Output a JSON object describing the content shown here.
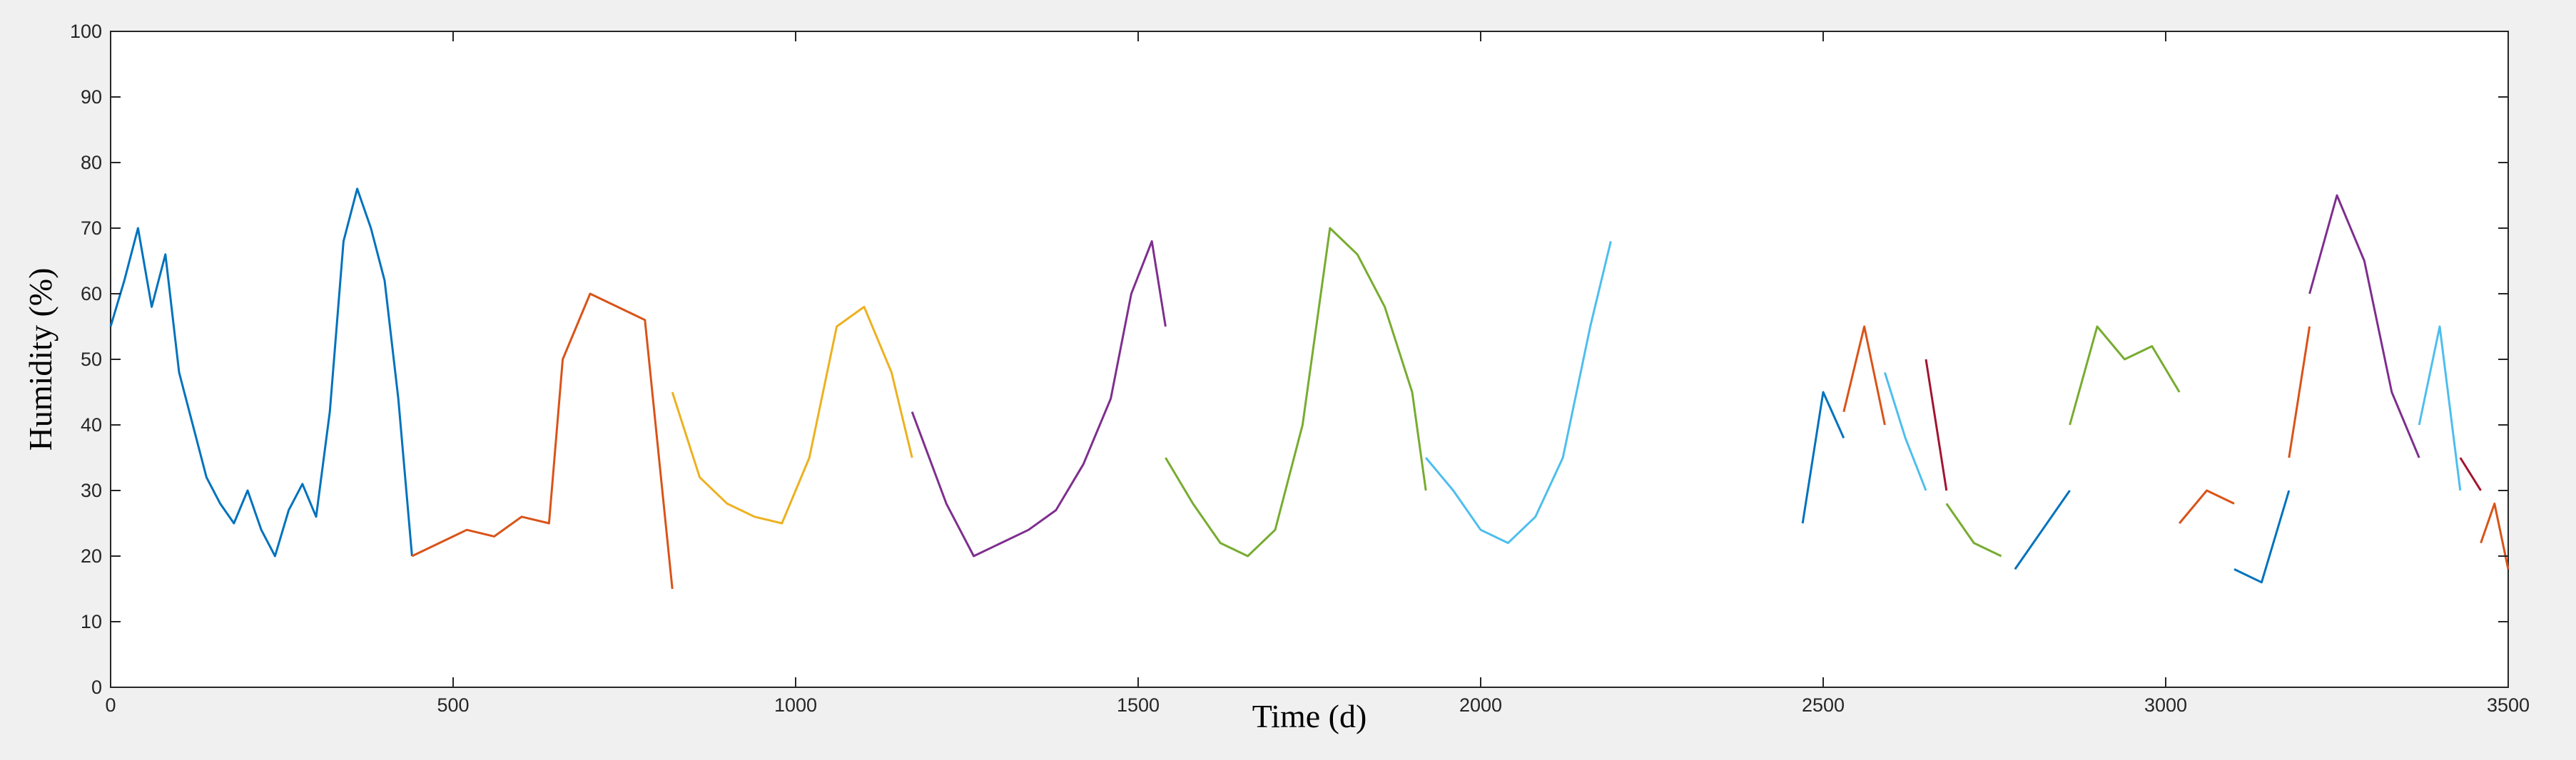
{
  "chart_data": {
    "type": "line",
    "title": "",
    "xlabel": "Time (d)",
    "ylabel": "Humidity (%)",
    "xlim": [
      0,
      3500
    ],
    "ylim": [
      0,
      100
    ],
    "xticks": [
      0,
      500,
      1000,
      1500,
      2000,
      2500,
      3000,
      3500
    ],
    "yticks": [
      0,
      10,
      20,
      30,
      40,
      50,
      60,
      70,
      80,
      90,
      100
    ],
    "grid": false,
    "legend": "none",
    "colors": [
      "#0072BD",
      "#D95319",
      "#EDB120",
      "#7E2F8E",
      "#77AC30",
      "#4DBEEE",
      "#A2142F"
    ],
    "series": [
      {
        "color": "#0072BD",
        "x": [
          0,
          20,
          40,
          60,
          80,
          100,
          120,
          140,
          160,
          180,
          200,
          220,
          240,
          260,
          280,
          300,
          320,
          340,
          360,
          380,
          400,
          420,
          440
        ],
        "y": [
          55,
          62,
          70,
          58,
          66,
          48,
          40,
          32,
          28,
          25,
          30,
          24,
          20,
          27,
          31,
          26,
          42,
          68,
          76,
          70,
          62,
          44,
          20
        ]
      },
      {
        "color": "#D95319",
        "x": [
          440,
          480,
          520,
          560,
          600,
          640,
          660,
          700,
          740,
          780,
          820
        ],
        "y": [
          20,
          22,
          24,
          23,
          26,
          25,
          50,
          60,
          58,
          56,
          15
        ]
      },
      {
        "color": "#EDB120",
        "x": [
          820,
          860,
          900,
          940,
          980,
          1020,
          1060,
          1100,
          1140,
          1170
        ],
        "y": [
          45,
          32,
          28,
          26,
          25,
          35,
          55,
          58,
          48,
          35
        ]
      },
      {
        "color": "#7E2F8E",
        "x": [
          1170,
          1220,
          1260,
          1300,
          1340,
          1380,
          1420,
          1460,
          1490,
          1520,
          1540
        ],
        "y": [
          42,
          28,
          20,
          22,
          24,
          27,
          34,
          44,
          60,
          68,
          55
        ]
      },
      {
        "color": "#77AC30",
        "x": [
          1540,
          1580,
          1620,
          1660,
          1700,
          1740,
          1780,
          1820,
          1860,
          1900,
          1920
        ],
        "y": [
          35,
          28,
          22,
          20,
          24,
          40,
          70,
          66,
          58,
          45,
          30
        ]
      },
      {
        "color": "#4DBEEE",
        "x": [
          1920,
          1960,
          2000,
          2040,
          2080,
          2120,
          2160,
          2190
        ],
        "y": [
          35,
          30,
          24,
          22,
          26,
          35,
          55,
          68
        ]
      },
      {
        "color": "#0072BD",
        "x": [
          2470,
          2500,
          2530
        ],
        "y": [
          25,
          45,
          38
        ]
      },
      {
        "color": "#D95319",
        "x": [
          2530,
          2560,
          2590
        ],
        "y": [
          42,
          55,
          40
        ]
      },
      {
        "color": "#4DBEEE",
        "x": [
          2590,
          2620,
          2650
        ],
        "y": [
          48,
          38,
          30
        ]
      },
      {
        "color": "#A2142F",
        "x": [
          2650,
          2680
        ],
        "y": [
          50,
          30
        ]
      },
      {
        "color": "#77AC30",
        "x": [
          2680,
          2720,
          2760
        ],
        "y": [
          28,
          22,
          20
        ]
      },
      {
        "color": "#0072BD",
        "x": [
          2780,
          2820,
          2860
        ],
        "y": [
          18,
          24,
          30
        ]
      },
      {
        "color": "#77AC30",
        "x": [
          2860,
          2900,
          2940,
          2980,
          3020
        ],
        "y": [
          40,
          55,
          50,
          52,
          45
        ]
      },
      {
        "color": "#D95319",
        "x": [
          3020,
          3060,
          3100
        ],
        "y": [
          25,
          30,
          28
        ]
      },
      {
        "color": "#0072BD",
        "x": [
          3100,
          3140,
          3180
        ],
        "y": [
          18,
          16,
          30
        ]
      },
      {
        "color": "#D95319",
        "x": [
          3180,
          3210
        ],
        "y": [
          35,
          55
        ]
      },
      {
        "color": "#7E2F8E",
        "x": [
          3210,
          3250,
          3290,
          3330,
          3370
        ],
        "y": [
          60,
          75,
          65,
          45,
          35
        ]
      },
      {
        "color": "#4DBEEE",
        "x": [
          3370,
          3400,
          3430
        ],
        "y": [
          40,
          55,
          30
        ]
      },
      {
        "color": "#A2142F",
        "x": [
          3430,
          3460
        ],
        "y": [
          35,
          30
        ]
      },
      {
        "color": "#D95319",
        "x": [
          3460,
          3480,
          3500
        ],
        "y": [
          22,
          28,
          18
        ]
      }
    ]
  }
}
